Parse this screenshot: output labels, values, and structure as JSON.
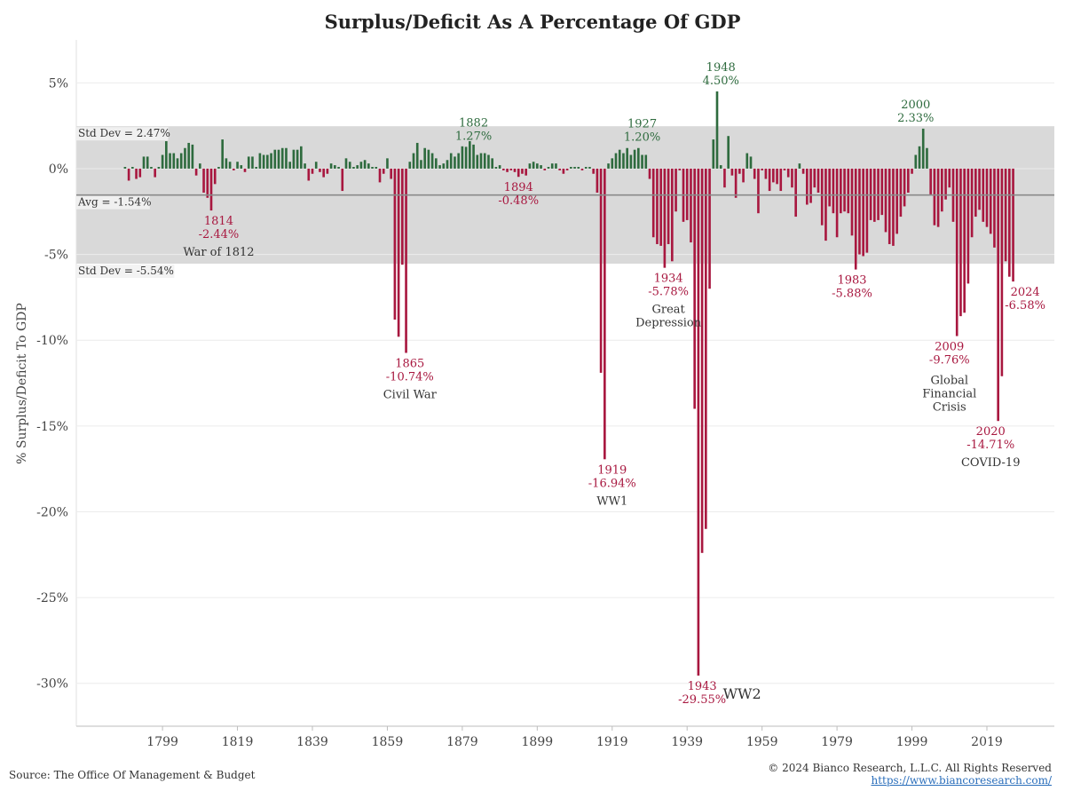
{
  "chart_data": {
    "type": "bar",
    "title": "Surplus/Deficit As A Percentage Of GDP",
    "ylabel": "% Surplus/Deficit To GDP",
    "xlabel": "",
    "ylim": [
      -32.5,
      7.5
    ],
    "xlim": [
      1776,
      2037
    ],
    "yticks": [
      5,
      0,
      -5,
      -10,
      -15,
      -20,
      -25,
      -30
    ],
    "ytick_labels": [
      "5%",
      "0%",
      "-5%",
      "-10%",
      "-15%",
      "-20%",
      "-25%",
      "-30%"
    ],
    "xticks": [
      1799,
      1819,
      1839,
      1859,
      1879,
      1899,
      1919,
      1939,
      1959,
      1979,
      1999,
      2019
    ],
    "xtick_labels": [
      "1799",
      "1819",
      "1839",
      "1859",
      "1879",
      "1899",
      "1919",
      "1939",
      "1959",
      "1979",
      "1999",
      "2019"
    ],
    "grid": true,
    "colors": {
      "positive": "#2e6b3e",
      "negative": "#a8173f",
      "band": "#d9d9d9",
      "avg_line": "#8a8a8a"
    },
    "start_year": 1789,
    "values": [
      0.1,
      -0.7,
      0.1,
      -0.6,
      -0.5,
      0.7,
      0.7,
      0.1,
      -0.5,
      0.1,
      0.8,
      1.6,
      0.9,
      0.9,
      0.6,
      0.9,
      1.2,
      1.5,
      1.4,
      -0.4,
      0.3,
      -1.4,
      -1.7,
      -2.44,
      -0.9,
      0.1,
      1.7,
      0.6,
      0.4,
      -0.1,
      0.4,
      0.2,
      -0.2,
      0.7,
      0.7,
      0.1,
      0.9,
      0.8,
      0.8,
      0.9,
      1.1,
      1.1,
      1.2,
      1.2,
      0.4,
      1.1,
      1.1,
      1.3,
      0.3,
      -0.7,
      -0.3,
      0.4,
      -0.2,
      -0.5,
      -0.3,
      0.3,
      0.2,
      0.1,
      -1.3,
      0.6,
      0.4,
      0.1,
      0.2,
      0.4,
      0.5,
      0.3,
      0.1,
      0.1,
      -0.8,
      -0.3,
      0.6,
      -0.6,
      -8.8,
      -9.8,
      -5.6,
      -10.74,
      0.4,
      0.9,
      1.5,
      0.5,
      1.2,
      1.1,
      0.9,
      0.6,
      0.2,
      0.3,
      0.5,
      0.9,
      0.7,
      0.9,
      1.3,
      1.27,
      1.6,
      1.4,
      0.8,
      0.9,
      0.9,
      0.8,
      0.6,
      0.1,
      0.2,
      -0.1,
      -0.2,
      -0.1,
      -0.2,
      -0.48,
      -0.3,
      -0.4,
      0.3,
      0.4,
      0.3,
      0.2,
      -0.1,
      0.1,
      0.3,
      0.3,
      -0.1,
      -0.3,
      -0.1,
      0.1,
      0.1,
      0.1,
      -0.1,
      0.1,
      0.1,
      -0.3,
      -1.4,
      -11.9,
      -16.94,
      0.3,
      0.6,
      0.9,
      1.1,
      0.9,
      1.2,
      0.8,
      1.1,
      1.2,
      0.8,
      0.8,
      -0.6,
      -4.0,
      -4.4,
      -4.5,
      -5.78,
      -4.4,
      -5.4,
      -2.5,
      -0.1,
      -3.1,
      -3.0,
      -4.3,
      -14.0,
      -29.55,
      -22.4,
      -21.0,
      -7.0,
      1.7,
      4.5,
      0.2,
      -1.1,
      1.9,
      -0.4,
      -1.7,
      -0.3,
      -0.8,
      0.9,
      0.7,
      -0.6,
      -2.6,
      -0.1,
      -0.6,
      -1.3,
      -0.8,
      -0.9,
      -1.3,
      -0.1,
      -0.5,
      -1.1,
      -2.8,
      0.3,
      -0.3,
      -2.1,
      -2.0,
      -1.1,
      -1.4,
      -3.3,
      -4.2,
      -2.2,
      -2.6,
      -4.0,
      -2.6,
      -2.5,
      -2.6,
      -3.9,
      -5.88,
      -5.0,
      -5.1,
      -4.9,
      -3.0,
      -3.1,
      -3.0,
      -2.7,
      -3.7,
      -4.4,
      -4.5,
      -3.8,
      -2.8,
      -2.2,
      -1.4,
      -0.3,
      0.8,
      1.3,
      2.33,
      1.2,
      -1.5,
      -3.3,
      -3.4,
      -2.5,
      -1.8,
      -1.1,
      -3.1,
      -9.76,
      -8.6,
      -8.4,
      -6.7,
      -4.0,
      -2.8,
      -2.4,
      -3.1,
      -3.4,
      -3.8,
      -4.6,
      -14.71,
      -12.1,
      -5.4,
      -6.3,
      -6.58
    ],
    "std_band": {
      "upper": 2.47,
      "lower": -5.54,
      "upper_label": "Std Dev = 2.47%",
      "lower_label": "Std Dev = -5.54%"
    },
    "average": {
      "value": -1.54,
      "label": "Avg = -1.54%"
    },
    "annotations": [
      {
        "year": 1814,
        "value": -2.44,
        "label_year": "1814",
        "label_value": "-2.44%",
        "event": "War of 1812",
        "color": "negative"
      },
      {
        "year": 1865,
        "value": -10.74,
        "label_year": "1865",
        "label_value": "-10.74%",
        "event": "Civil War",
        "color": "negative"
      },
      {
        "year": 1882,
        "value": 1.27,
        "label_year": "1882",
        "label_value": "1.27%",
        "event": "",
        "color": "positive"
      },
      {
        "year": 1894,
        "value": -0.48,
        "label_year": "1894",
        "label_value": "-0.48%",
        "event": "",
        "color": "negative"
      },
      {
        "year": 1919,
        "value": -16.94,
        "label_year": "1919",
        "label_value": "-16.94%",
        "event": "WW1",
        "color": "negative"
      },
      {
        "year": 1927,
        "value": 1.2,
        "label_year": "1927",
        "label_value": "1.20%",
        "event": "",
        "color": "positive"
      },
      {
        "year": 1934,
        "value": -5.78,
        "label_year": "1934",
        "label_value": "-5.78%",
        "event": "Great Depression",
        "color": "negative"
      },
      {
        "year": 1943,
        "value": -29.55,
        "label_year": "1943",
        "label_value": "-29.55%",
        "event": "WW2",
        "color": "negative"
      },
      {
        "year": 1948,
        "value": 4.5,
        "label_year": "1948",
        "label_value": "4.50%",
        "event": "",
        "color": "positive"
      },
      {
        "year": 1983,
        "value": -5.88,
        "label_year": "1983",
        "label_value": "-5.88%",
        "event": "",
        "color": "negative"
      },
      {
        "year": 2000,
        "value": 2.33,
        "label_year": "2000",
        "label_value": "2.33%",
        "event": "",
        "color": "positive"
      },
      {
        "year": 2009,
        "value": -9.76,
        "label_year": "2009",
        "label_value": "-9.76%",
        "event": "Global Financial Crisis",
        "color": "negative"
      },
      {
        "year": 2020,
        "value": -14.71,
        "label_year": "2020",
        "label_value": "-14.71%",
        "event": "COVID-19",
        "color": "negative"
      },
      {
        "year": 2024,
        "value": -6.58,
        "label_year": "2024",
        "label_value": "-6.58%",
        "event": "",
        "color": "negative"
      }
    ]
  },
  "footer": {
    "source": "Source: The Office Of Management & Budget",
    "copyright": "© 2024 Bianco Research, L.L.C. All Rights Reserved",
    "url": "https://www.biancoresearch.com/"
  }
}
